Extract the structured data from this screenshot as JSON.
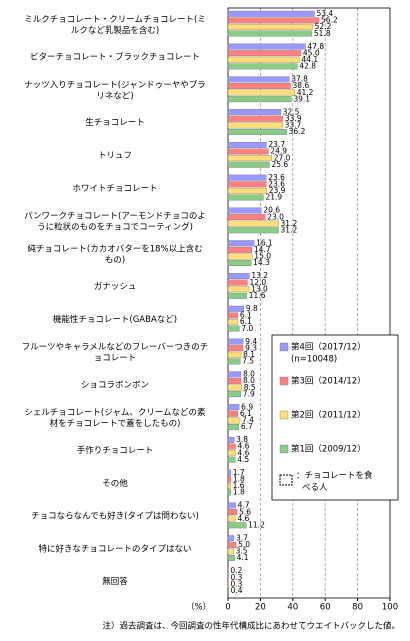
{
  "chart_data": {
    "type": "bar",
    "orientation": "horizontal",
    "categories": [
      "ミルクチョコレート・クリームチョコレート(ミルクなど乳製品を含む)",
      "ビターチョコレート・ブラックチョコレート",
      "ナッツ入りチョコレート(ジャンドゥーヤやプラリネなど)",
      "生チョコレート",
      "トリュフ",
      "ホワイトチョコレート",
      "パンワークチョコレート(アーモンドチョコのように粒状のものをチョコでコーティング)",
      "純チョコレート(カカオバターを18%以上含むもの)",
      "ガナッシュ",
      "機能性チョコレート(GABAなど)",
      "フルーツやキャラメルなどのフレーバーつきのチョコレート",
      "ショコラボンボン",
      "シェルチョコレート(ジャム、クリームなどの素材をチョコレートで蓋をしたもの)",
      "手作りチョコレート",
      "その他",
      "チョコならなんでも好き(タイプは問わない)",
      "特に好きなチョコレートのタイプはない",
      "無回答"
    ],
    "series": [
      {
        "name": "第4回（2017/12）",
        "color": "#9999ff",
        "values": [
          53.4,
          47.8,
          37.8,
          32.5,
          23.7,
          23.6,
          20.6,
          16.1,
          13.2,
          9.8,
          9.4,
          8.0,
          6.9,
          3.8,
          1.7,
          4.7,
          3.7,
          0.2
        ],
        "value_labels": [
          "53.4",
          "47.8",
          "37.8",
          "32.5",
          "23.7",
          "23.6",
          "20.6",
          "16.1",
          "13.2",
          "9.8",
          "9.4",
          "8.0",
          "6.9",
          "3.8",
          "1.7",
          "4.7",
          "3.7",
          "0.2"
        ]
      },
      {
        "name": "第3回（2014/12）",
        "color": "#ff8080",
        "values": [
          56.2,
          45.0,
          38.6,
          33.9,
          24.9,
          23.6,
          23.0,
          14.7,
          12.0,
          6.1,
          9.3,
          8.0,
          6.1,
          4.6,
          1.8,
          5.6,
          5.0,
          0.3
        ],
        "value_labels": [
          "56.2",
          "45.0",
          "38.6",
          "33.9",
          "24.9",
          "23.6",
          "23.0",
          "14.7",
          "12.0",
          "6.1",
          "9.3",
          "8.0",
          "6.1",
          "4.6",
          "1.8",
          "5.6",
          "5.0",
          "0.3"
        ]
      },
      {
        "name": "第2回（2011/12）",
        "color": "#ffdd77",
        "values": [
          52.2,
          44.1,
          41.2,
          33.7,
          27.0,
          23.9,
          31.2,
          15.0,
          13.0,
          6.1,
          8.1,
          8.5,
          7.4,
          4.6,
          1.6,
          4.6,
          3.5,
          0.3
        ],
        "value_labels": [
          "52.2",
          "44.1",
          "41.2",
          "33.7",
          "27.0",
          "23.9",
          "31.2",
          "15.0",
          "13.0",
          "6.1",
          "8.1",
          "8.5",
          "7.4",
          "4.6",
          "1.6",
          "4.6",
          "3.5",
          "0.3"
        ]
      },
      {
        "name": "第1回（2009/12）",
        "color": "#88cc88",
        "values": [
          51.8,
          42.8,
          39.1,
          36.2,
          25.6,
          21.9,
          31.2,
          14.3,
          11.6,
          7.0,
          7.5,
          7.9,
          6.7,
          4.5,
          1.8,
          11.2,
          4.1,
          0.4
        ],
        "value_labels": [
          "51.8",
          "42.8",
          "39.1",
          "36.2",
          "25.6",
          "21.9",
          "31.2",
          "14.3",
          "11.6",
          "7.0",
          "7.5",
          "7.9",
          "6.7",
          "4.5",
          "1.8",
          "11.2",
          "4.1",
          "0.4"
        ]
      }
    ],
    "legend_note": "(n=10048)",
    "legend_caption": "：チョコレートを食べる人",
    "x_unit": "（%）",
    "xlim": [
      0,
      100
    ],
    "xticks": [
      0,
      20,
      40,
      60,
      80,
      100
    ],
    "footnote": "注）過去調査は、今回調査の性年代構成比にあわせてウエイトバックした値。"
  }
}
